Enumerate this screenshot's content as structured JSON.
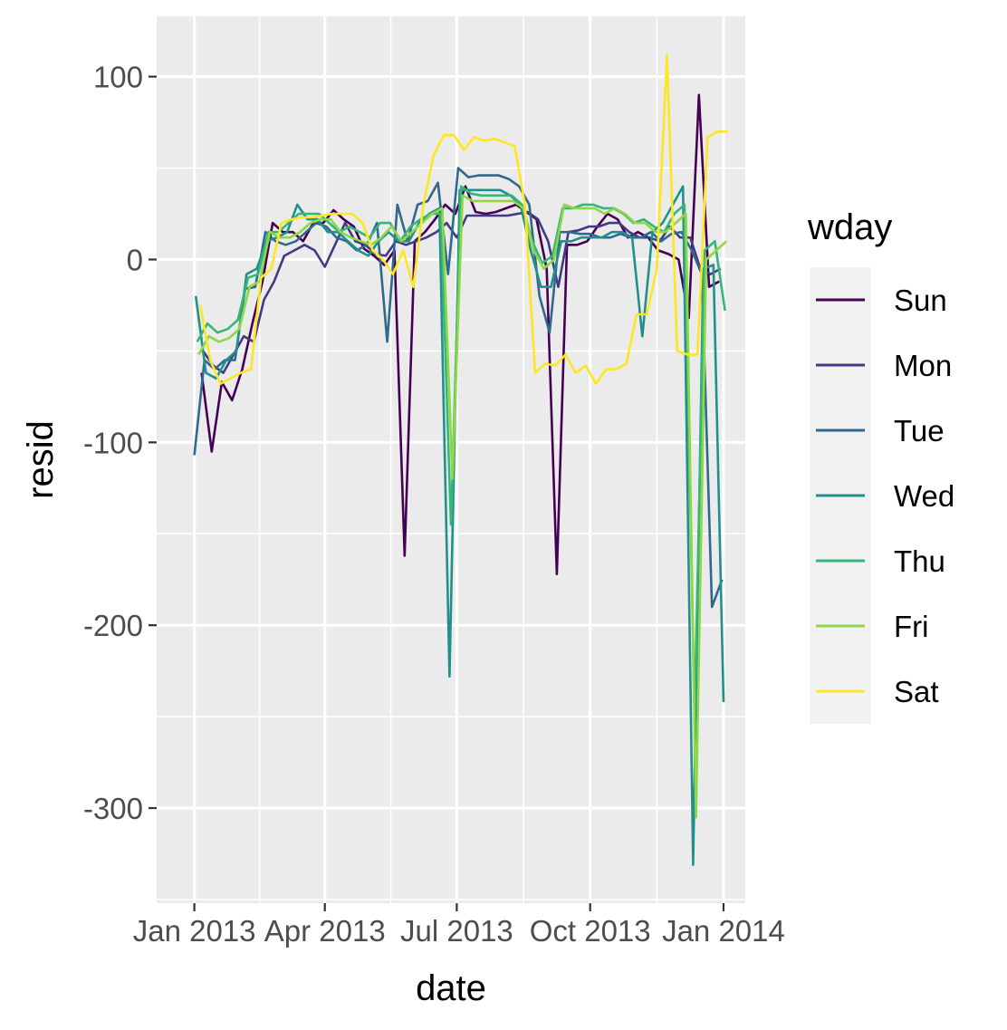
{
  "chart_data": {
    "type": "line",
    "title": "",
    "xlabel": "date",
    "ylabel": "resid",
    "xlim": [
      "2012-12-06",
      "2014-01-16"
    ],
    "ylim": [
      -352,
      133
    ],
    "x_ticks": [
      {
        "date": "2013-01-01",
        "label": "Jan 2013"
      },
      {
        "date": "2013-04-01",
        "label": "Apr 2013"
      },
      {
        "date": "2013-07-01",
        "label": "Jul 2013"
      },
      {
        "date": "2013-10-01",
        "label": "Oct 2013"
      },
      {
        "date": "2014-01-01",
        "label": "Jan 2014"
      }
    ],
    "y_ticks": [
      {
        "value": 100,
        "label": "100"
      },
      {
        "value": 0,
        "label": "0"
      },
      {
        "value": -100,
        "label": "-100"
      },
      {
        "value": -200,
        "label": "-200"
      },
      {
        "value": -300,
        "label": "-300"
      }
    ],
    "grid": true,
    "legend": {
      "title": "wday",
      "position": "right"
    },
    "series": [
      {
        "name": "Sun",
        "color": "#440154",
        "x": [
          "2013-01-06",
          "2013-01-13",
          "2013-01-20",
          "2013-01-27",
          "2013-02-03",
          "2013-02-10",
          "2013-02-17",
          "2013-02-24",
          "2013-03-03",
          "2013-03-10",
          "2013-03-17",
          "2013-03-24",
          "2013-03-31",
          "2013-04-07",
          "2013-04-14",
          "2013-04-21",
          "2013-04-28",
          "2013-05-05",
          "2013-05-12",
          "2013-05-19",
          "2013-05-26",
          "2013-06-02",
          "2013-06-09",
          "2013-06-16",
          "2013-06-23",
          "2013-06-30",
          "2013-07-07",
          "2013-07-14",
          "2013-07-21",
          "2013-07-28",
          "2013-08-04",
          "2013-08-11",
          "2013-08-18",
          "2013-08-25",
          "2013-09-01",
          "2013-09-08",
          "2013-09-15",
          "2013-09-22",
          "2013-09-29",
          "2013-10-06",
          "2013-10-13",
          "2013-10-20",
          "2013-10-27",
          "2013-11-03",
          "2013-11-10",
          "2013-11-17",
          "2013-11-24",
          "2013-12-01",
          "2013-12-08",
          "2013-12-15",
          "2013-12-22",
          "2013-12-29"
        ],
        "y": [
          -62,
          -105,
          -67,
          -77,
          -60,
          -35,
          -12,
          20,
          15,
          15,
          10,
          20,
          20,
          27,
          22,
          18,
          6,
          2,
          -3,
          5,
          -162,
          10,
          15,
          22,
          30,
          25,
          40,
          26,
          25,
          26,
          28,
          30,
          26,
          22,
          -5,
          -172,
          8,
          8,
          10,
          18,
          25,
          22,
          12,
          15,
          12,
          5,
          3,
          0,
          -32,
          90,
          -15,
          -12
        ]
      },
      {
        "name": "Mon",
        "color": "#443983",
        "x": [
          "2013-01-07",
          "2013-01-14",
          "2013-01-21",
          "2013-01-28",
          "2013-02-04",
          "2013-02-11",
          "2013-02-18",
          "2013-02-25",
          "2013-03-04",
          "2013-03-11",
          "2013-03-18",
          "2013-03-25",
          "2013-04-01",
          "2013-04-08",
          "2013-04-15",
          "2013-04-22",
          "2013-04-29",
          "2013-05-06",
          "2013-05-13",
          "2013-05-20",
          "2013-05-27",
          "2013-06-03",
          "2013-06-10",
          "2013-06-17",
          "2013-06-24",
          "2013-07-01",
          "2013-07-08",
          "2013-07-15",
          "2013-07-22",
          "2013-07-29",
          "2013-08-05",
          "2013-08-12",
          "2013-08-19",
          "2013-08-26",
          "2013-09-02",
          "2013-09-09",
          "2013-09-16",
          "2013-09-23",
          "2013-09-30",
          "2013-10-07",
          "2013-10-14",
          "2013-10-21",
          "2013-10-28",
          "2013-11-04",
          "2013-11-11",
          "2013-11-18",
          "2013-11-25",
          "2013-12-02",
          "2013-12-09",
          "2013-12-16",
          "2013-12-23",
          "2013-12-30"
        ],
        "y": [
          -50,
          -58,
          -62,
          -52,
          -42,
          -45,
          -22,
          -12,
          2,
          5,
          8,
          5,
          -4,
          8,
          20,
          10,
          8,
          3,
          2,
          10,
          8,
          10,
          12,
          15,
          20,
          12,
          24,
          24,
          24,
          24,
          24,
          25,
          26,
          22,
          10,
          -15,
          15,
          16,
          18,
          18,
          20,
          20,
          15,
          12,
          12,
          10,
          18,
          12,
          12,
          -5,
          -8,
          -5
        ]
      },
      {
        "name": "Tue",
        "color": "#31688e",
        "x": [
          "2013-01-01",
          "2013-01-08",
          "2013-01-15",
          "2013-01-22",
          "2013-01-29",
          "2013-02-05",
          "2013-02-12",
          "2013-02-19",
          "2013-02-26",
          "2013-03-05",
          "2013-03-12",
          "2013-03-19",
          "2013-03-26",
          "2013-04-02",
          "2013-04-09",
          "2013-04-16",
          "2013-04-23",
          "2013-04-30",
          "2013-05-07",
          "2013-05-14",
          "2013-05-21",
          "2013-05-28",
          "2013-06-04",
          "2013-06-11",
          "2013-06-18",
          "2013-06-25",
          "2013-07-02",
          "2013-07-09",
          "2013-07-16",
          "2013-07-23",
          "2013-07-30",
          "2013-08-06",
          "2013-08-13",
          "2013-08-20",
          "2013-08-27",
          "2013-09-03",
          "2013-09-10",
          "2013-09-17",
          "2013-09-24",
          "2013-10-01",
          "2013-10-08",
          "2013-10-15",
          "2013-10-22",
          "2013-10-29",
          "2013-11-05",
          "2013-11-12",
          "2013-11-19",
          "2013-11-26",
          "2013-12-03",
          "2013-12-10",
          "2013-12-17",
          "2013-12-24",
          "2013-12-31"
        ],
        "y": [
          -107,
          -55,
          -60,
          -55,
          -55,
          -16,
          -15,
          15,
          10,
          8,
          10,
          15,
          20,
          18,
          12,
          10,
          5,
          8,
          20,
          -45,
          30,
          10,
          30,
          32,
          42,
          -8,
          50,
          45,
          46,
          46,
          46,
          44,
          40,
          30,
          -20,
          -40,
          15,
          15,
          14,
          14,
          12,
          12,
          14,
          12,
          12,
          15,
          10,
          14,
          15,
          5,
          -8,
          -190,
          -175
        ]
      },
      {
        "name": "Wed",
        "color": "#21908d",
        "x": [
          "2013-01-02",
          "2013-01-09",
          "2013-01-16",
          "2013-01-23",
          "2013-01-30",
          "2013-02-06",
          "2013-02-13",
          "2013-02-20",
          "2013-02-27",
          "2013-03-06",
          "2013-03-13",
          "2013-03-20",
          "2013-03-27",
          "2013-04-03",
          "2013-04-10",
          "2013-04-17",
          "2013-04-24",
          "2013-05-01",
          "2013-05-08",
          "2013-05-15",
          "2013-05-22",
          "2013-05-29",
          "2013-06-05",
          "2013-06-12",
          "2013-06-19",
          "2013-06-26",
          "2013-07-03",
          "2013-07-10",
          "2013-07-17",
          "2013-07-24",
          "2013-07-31",
          "2013-08-07",
          "2013-08-14",
          "2013-08-21",
          "2013-08-28",
          "2013-09-04",
          "2013-09-11",
          "2013-09-18",
          "2013-09-25",
          "2013-10-02",
          "2013-10-09",
          "2013-10-16",
          "2013-10-23",
          "2013-10-30",
          "2013-11-06",
          "2013-11-13",
          "2013-11-20",
          "2013-11-27",
          "2013-12-04",
          "2013-12-11",
          "2013-12-18",
          "2013-12-25",
          "2014-01-01"
        ],
        "y": [
          -20,
          -62,
          -65,
          -55,
          -50,
          -8,
          -5,
          10,
          12,
          15,
          30,
          22,
          22,
          15,
          15,
          10,
          5,
          2,
          10,
          15,
          10,
          10,
          20,
          25,
          28,
          -228,
          38,
          38,
          38,
          38,
          38,
          35,
          30,
          5,
          -15,
          -15,
          10,
          10,
          12,
          12,
          12,
          15,
          15,
          12,
          -42,
          15,
          20,
          30,
          40,
          -331,
          -5,
          -3,
          -242
        ]
      },
      {
        "name": "Thu",
        "color": "#35b779",
        "x": [
          "2013-01-03",
          "2013-01-10",
          "2013-01-17",
          "2013-01-24",
          "2013-01-31",
          "2013-02-07",
          "2013-02-14",
          "2013-02-21",
          "2013-02-28",
          "2013-03-07",
          "2013-03-14",
          "2013-03-21",
          "2013-03-28",
          "2013-04-04",
          "2013-04-11",
          "2013-04-18",
          "2013-04-25",
          "2013-05-02",
          "2013-05-09",
          "2013-05-16",
          "2013-05-23",
          "2013-05-30",
          "2013-06-06",
          "2013-06-13",
          "2013-06-20",
          "2013-06-27",
          "2013-07-04",
          "2013-07-11",
          "2013-07-18",
          "2013-07-25",
          "2013-08-01",
          "2013-08-08",
          "2013-08-15",
          "2013-08-22",
          "2013-08-29",
          "2013-09-05",
          "2013-09-12",
          "2013-09-19",
          "2013-09-26",
          "2013-10-03",
          "2013-10-10",
          "2013-10-17",
          "2013-10-24",
          "2013-10-31",
          "2013-11-07",
          "2013-11-14",
          "2013-11-21",
          "2013-11-28",
          "2013-12-05",
          "2013-12-12",
          "2013-12-19",
          "2013-12-26",
          "2014-01-02"
        ],
        "y": [
          -45,
          -35,
          -40,
          -38,
          -33,
          -10,
          -8,
          15,
          15,
          20,
          25,
          25,
          25,
          20,
          15,
          18,
          15,
          12,
          20,
          20,
          10,
          18,
          22,
          25,
          25,
          -145,
          40,
          36,
          35,
          35,
          35,
          35,
          30,
          10,
          -2,
          2,
          28,
          28,
          30,
          30,
          28,
          28,
          25,
          20,
          22,
          18,
          15,
          25,
          30,
          -250,
          5,
          10,
          -28
        ]
      },
      {
        "name": "Fri",
        "color": "#8fd744",
        "x": [
          "2013-01-04",
          "2013-01-11",
          "2013-01-18",
          "2013-01-25",
          "2013-02-01",
          "2013-02-08",
          "2013-02-15",
          "2013-02-22",
          "2013-03-01",
          "2013-03-08",
          "2013-03-15",
          "2013-03-22",
          "2013-03-29",
          "2013-04-05",
          "2013-04-12",
          "2013-04-19",
          "2013-04-26",
          "2013-05-03",
          "2013-05-10",
          "2013-05-17",
          "2013-05-24",
          "2013-05-31",
          "2013-06-07",
          "2013-06-14",
          "2013-06-21",
          "2013-06-28",
          "2013-07-05",
          "2013-07-12",
          "2013-07-19",
          "2013-07-26",
          "2013-08-02",
          "2013-08-09",
          "2013-08-16",
          "2013-08-23",
          "2013-08-30",
          "2013-09-06",
          "2013-09-13",
          "2013-09-20",
          "2013-09-27",
          "2013-10-04",
          "2013-10-11",
          "2013-10-18",
          "2013-10-25",
          "2013-11-01",
          "2013-11-08",
          "2013-11-15",
          "2013-11-22",
          "2013-11-29",
          "2013-12-06",
          "2013-12-13",
          "2013-12-20",
          "2013-12-27",
          "2014-01-03"
        ],
        "y": [
          -52,
          -42,
          -45,
          -43,
          -38,
          -15,
          -12,
          15,
          12,
          12,
          15,
          20,
          22,
          22,
          15,
          12,
          10,
          8,
          12,
          18,
          10,
          15,
          20,
          25,
          28,
          -120,
          35,
          32,
          32,
          32,
          32,
          32,
          28,
          5,
          -5,
          0,
          30,
          28,
          28,
          28,
          25,
          28,
          25,
          20,
          20,
          15,
          15,
          20,
          25,
          -305,
          0,
          5,
          10
        ]
      },
      {
        "name": "Sat",
        "color": "#fde725",
        "x": [
          "2013-01-05",
          "2013-01-12",
          "2013-01-19",
          "2013-01-26",
          "2013-02-02",
          "2013-02-09",
          "2013-02-16",
          "2013-02-23",
          "2013-03-02",
          "2013-03-09",
          "2013-03-16",
          "2013-03-23",
          "2013-03-30",
          "2013-04-06",
          "2013-04-13",
          "2013-04-20",
          "2013-04-27",
          "2013-05-04",
          "2013-05-11",
          "2013-05-18",
          "2013-05-25",
          "2013-06-01",
          "2013-06-08",
          "2013-06-15",
          "2013-06-22",
          "2013-06-29",
          "2013-07-06",
          "2013-07-13",
          "2013-07-20",
          "2013-07-27",
          "2013-08-03",
          "2013-08-10",
          "2013-08-17",
          "2013-08-24",
          "2013-08-31",
          "2013-09-07",
          "2013-09-14",
          "2013-09-21",
          "2013-09-28",
          "2013-10-05",
          "2013-10-12",
          "2013-10-19",
          "2013-10-26",
          "2013-11-02",
          "2013-11-09",
          "2013-11-16",
          "2013-11-23",
          "2013-11-30",
          "2013-12-07",
          "2013-12-14",
          "2013-12-21",
          "2013-12-28",
          "2014-01-04"
        ],
        "y": [
          -25,
          -55,
          -68,
          -65,
          -62,
          -60,
          -10,
          -5,
          20,
          22,
          23,
          23,
          24,
          25,
          25,
          25,
          20,
          5,
          0,
          -8,
          5,
          -15,
          30,
          57,
          68,
          68,
          60,
          67,
          65,
          66,
          64,
          62,
          30,
          -62,
          -57,
          -58,
          -52,
          -62,
          -58,
          -68,
          -60,
          -60,
          -57,
          -30,
          -30,
          -5,
          112,
          -50,
          -52,
          -52,
          67,
          70,
          70
        ]
      }
    ]
  }
}
